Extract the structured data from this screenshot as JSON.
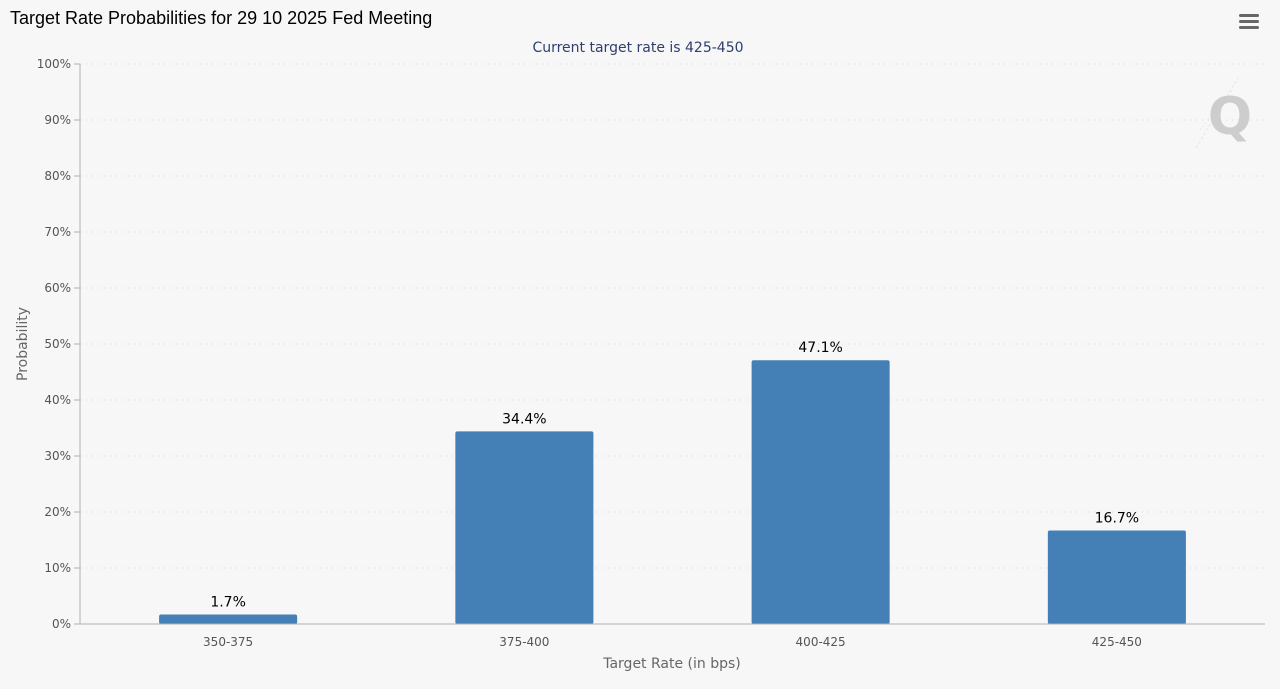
{
  "header": {
    "title": "Target Rate Probabilities for 29 10 2025 Fed Meeting",
    "menu_icon": "hamburger-menu-icon"
  },
  "watermark": {
    "letter": "Q"
  },
  "chart_data": {
    "type": "bar",
    "title": "Target Rate Probabilities for 29 10 2025 Fed Meeting",
    "subtitle": "Current target rate is 425-450",
    "xlabel": "Target Rate (in bps)",
    "ylabel": "Probability",
    "categories": [
      "350-375",
      "375-400",
      "400-425",
      "425-450"
    ],
    "values": [
      1.7,
      34.4,
      47.1,
      16.7
    ],
    "data_labels": [
      "1.7%",
      "34.4%",
      "47.1%",
      "16.7%"
    ],
    "ylim": [
      0,
      100
    ],
    "yticks": [
      0,
      10,
      20,
      30,
      40,
      50,
      60,
      70,
      80,
      90,
      100
    ],
    "ytick_labels": [
      "0%",
      "10%",
      "20%",
      "30%",
      "40%",
      "50%",
      "60%",
      "70%",
      "80%",
      "90%",
      "100%"
    ],
    "grid": true,
    "legend": "none",
    "colors": {
      "bar": "#4480b6",
      "grid": "#d4d4d4",
      "axis": "#b0b0b0",
      "subtitle": "#2f3f6e"
    }
  }
}
